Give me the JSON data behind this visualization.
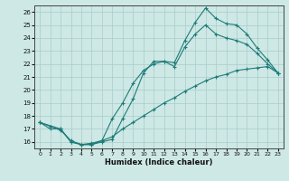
{
  "xlabel": "Humidex (Indice chaleur)",
  "background_color": "#cde8e5",
  "grid_color": "#a8ccca",
  "line_color": "#1e7b78",
  "xlim": [
    -0.5,
    23.5
  ],
  "ylim": [
    15.5,
    26.5
  ],
  "xticks": [
    0,
    1,
    2,
    3,
    4,
    5,
    6,
    7,
    8,
    9,
    10,
    11,
    12,
    13,
    14,
    15,
    16,
    17,
    18,
    19,
    20,
    21,
    22,
    23
  ],
  "yticks": [
    16,
    17,
    18,
    19,
    20,
    21,
    22,
    23,
    24,
    25,
    26
  ],
  "line1_x": [
    0,
    1,
    2,
    3,
    4,
    5,
    6,
    7,
    8,
    9,
    10,
    11,
    12,
    13,
    14,
    15,
    16,
    17,
    18,
    19,
    20,
    21,
    22,
    23
  ],
  "line1_y": [
    17.5,
    17.0,
    17.0,
    16.0,
    15.8,
    15.8,
    16.0,
    16.2,
    17.8,
    19.3,
    21.3,
    22.2,
    22.2,
    22.1,
    23.8,
    25.2,
    26.3,
    25.5,
    25.1,
    25.0,
    24.3,
    23.2,
    22.3,
    21.3
  ],
  "line2_x": [
    0,
    1,
    2,
    3,
    4,
    5,
    6,
    7,
    8,
    9,
    10,
    11,
    12,
    13,
    14,
    15,
    16,
    17,
    18,
    19,
    20,
    21,
    22,
    23
  ],
  "line2_y": [
    17.5,
    17.2,
    16.9,
    16.1,
    15.8,
    15.9,
    16.1,
    16.4,
    17.0,
    17.5,
    18.0,
    18.5,
    19.0,
    19.4,
    19.9,
    20.3,
    20.7,
    21.0,
    21.2,
    21.5,
    21.6,
    21.7,
    21.8,
    21.3
  ],
  "line3_x": [
    0,
    2,
    3,
    4,
    5,
    6,
    7,
    8,
    9,
    10,
    11,
    12,
    13,
    14,
    15,
    16,
    17,
    18,
    19,
    20,
    21,
    22,
    23
  ],
  "line3_y": [
    17.5,
    17.0,
    16.0,
    15.8,
    15.8,
    16.1,
    17.8,
    19.0,
    20.5,
    21.5,
    22.0,
    22.2,
    21.8,
    23.3,
    24.3,
    25.0,
    24.3,
    24.0,
    23.8,
    23.5,
    22.8,
    22.0,
    21.3
  ]
}
